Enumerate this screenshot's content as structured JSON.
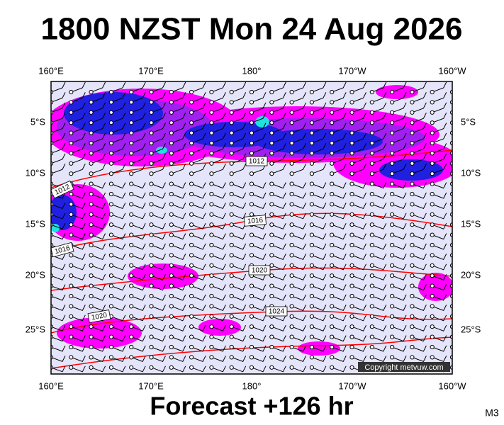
{
  "title": "1800 NZST Mon 24 Aug 2026",
  "map": {
    "top_labels": [
      "160°E",
      "170°E",
      "180°",
      "170°W",
      "160°W"
    ],
    "bottom_labels": [
      "160°E",
      "170°E",
      "180°",
      "170°W",
      "160°W"
    ],
    "left_labels": [
      "5°S",
      "10°S",
      "15°S",
      "20°S",
      "25°S"
    ],
    "right_labels": [
      "5°S",
      "10°S",
      "15°S",
      "20°S",
      "25°S"
    ],
    "isobar_labels": [
      "1012",
      "1012",
      "1016",
      "1016",
      "1020",
      "1020",
      "1024"
    ],
    "copyright": "Copyright metvuw.com"
  },
  "footer": "Forecast +126 hr",
  "code": "M3"
}
